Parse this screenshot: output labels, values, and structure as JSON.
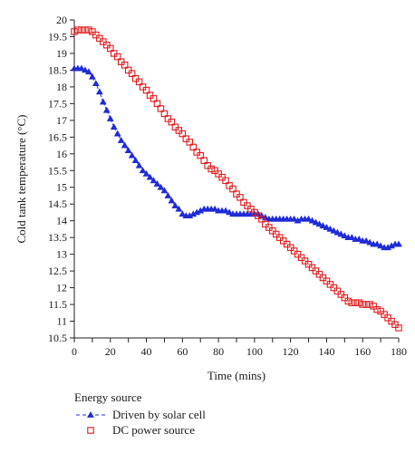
{
  "chart_data": {
    "type": "scatter",
    "title": "",
    "xlabel": "Time (mins)",
    "ylabel": "Cold tank temperature (°C)",
    "xlim": [
      0,
      180
    ],
    "ylim": [
      10.5,
      20
    ],
    "xticks": [
      0,
      10,
      20,
      30,
      40,
      50,
      60,
      70,
      80,
      90,
      100,
      110,
      120,
      130,
      140,
      150,
      160,
      170,
      180
    ],
    "yticks": [
      10.5,
      11,
      11.5,
      12,
      12.5,
      13,
      13.5,
      14,
      14.5,
      15,
      15.5,
      16,
      16.5,
      17,
      17.5,
      18,
      18.5,
      19,
      19.5,
      20
    ],
    "grid": false,
    "legend": {
      "title": "Energy source",
      "placement": "bottom-left"
    },
    "series": [
      {
        "name": "Driven by solar cell",
        "marker": "triangle",
        "line": "dashed",
        "color": "#1f2bd6",
        "x": [
          0,
          2,
          4,
          6,
          8,
          10,
          12,
          14,
          16,
          18,
          20,
          22,
          24,
          26,
          28,
          30,
          32,
          34,
          36,
          38,
          40,
          42,
          44,
          46,
          48,
          50,
          52,
          54,
          56,
          58,
          60,
          62,
          64,
          66,
          68,
          70,
          72,
          74,
          76,
          78,
          80,
          82,
          84,
          86,
          88,
          90,
          92,
          94,
          96,
          98,
          100,
          102,
          104,
          106,
          108,
          110,
          112,
          114,
          116,
          118,
          120,
          122,
          124,
          126,
          128,
          130,
          132,
          134,
          136,
          138,
          140,
          142,
          144,
          146,
          148,
          150,
          152,
          154,
          156,
          158,
          160,
          162,
          164,
          166,
          168,
          170,
          172,
          174,
          176,
          178,
          180
        ],
        "values": [
          18.55,
          18.55,
          18.55,
          18.5,
          18.45,
          18.3,
          18.1,
          17.85,
          17.55,
          17.3,
          17.05,
          16.8,
          16.6,
          16.4,
          16.25,
          16.1,
          15.95,
          15.8,
          15.65,
          15.5,
          15.4,
          15.3,
          15.2,
          15.1,
          15.0,
          14.9,
          14.75,
          14.6,
          14.45,
          14.35,
          14.2,
          14.15,
          14.15,
          14.2,
          14.25,
          14.3,
          14.35,
          14.35,
          14.35,
          14.35,
          14.3,
          14.3,
          14.3,
          14.25,
          14.2,
          14.2,
          14.2,
          14.2,
          14.2,
          14.2,
          14.2,
          14.2,
          14.15,
          14.1,
          14.05,
          14.05,
          14.05,
          14.05,
          14.05,
          14.05,
          14.05,
          14.05,
          14.0,
          14.05,
          14.05,
          14.05,
          14.0,
          13.95,
          13.9,
          13.85,
          13.8,
          13.75,
          13.7,
          13.65,
          13.6,
          13.55,
          13.5,
          13.5,
          13.45,
          13.45,
          13.4,
          13.4,
          13.35,
          13.3,
          13.3,
          13.25,
          13.2,
          13.2,
          13.25,
          13.3,
          13.3
        ]
      },
      {
        "name": "DC power source",
        "marker": "square",
        "line": "none",
        "color": "#e31a1c",
        "x": [
          0,
          2,
          4,
          6,
          8,
          10,
          12,
          14,
          16,
          18,
          20,
          22,
          24,
          26,
          28,
          30,
          32,
          34,
          36,
          38,
          40,
          42,
          44,
          46,
          48,
          50,
          52,
          54,
          56,
          58,
          60,
          62,
          64,
          66,
          68,
          70,
          72,
          74,
          76,
          78,
          80,
          82,
          84,
          86,
          88,
          90,
          92,
          94,
          96,
          98,
          100,
          102,
          104,
          106,
          108,
          110,
          112,
          114,
          116,
          118,
          120,
          122,
          124,
          126,
          128,
          130,
          132,
          134,
          136,
          138,
          140,
          142,
          144,
          146,
          148,
          150,
          152,
          154,
          156,
          158,
          160,
          162,
          164,
          166,
          168,
          170,
          172,
          174,
          176,
          178,
          180
        ],
        "values": [
          19.65,
          19.7,
          19.7,
          19.7,
          19.7,
          19.65,
          19.55,
          19.45,
          19.35,
          19.25,
          19.15,
          19.0,
          18.9,
          18.75,
          18.65,
          18.5,
          18.4,
          18.25,
          18.15,
          18.0,
          17.9,
          17.75,
          17.65,
          17.5,
          17.35,
          17.2,
          17.05,
          16.95,
          16.8,
          16.7,
          16.6,
          16.45,
          16.35,
          16.2,
          16.05,
          15.95,
          15.8,
          15.65,
          15.55,
          15.5,
          15.4,
          15.3,
          15.2,
          15.05,
          14.95,
          14.8,
          14.7,
          14.55,
          14.45,
          14.35,
          14.25,
          14.15,
          14.05,
          13.9,
          13.8,
          13.7,
          13.6,
          13.5,
          13.4,
          13.3,
          13.2,
          13.1,
          13.0,
          12.9,
          12.8,
          12.7,
          12.6,
          12.5,
          12.4,
          12.3,
          12.2,
          12.1,
          12.0,
          11.9,
          11.8,
          11.7,
          11.6,
          11.55,
          11.55,
          11.55,
          11.5,
          11.5,
          11.5,
          11.45,
          11.35,
          11.3,
          11.2,
          11.1,
          11.0,
          10.9,
          10.8
        ]
      }
    ]
  }
}
